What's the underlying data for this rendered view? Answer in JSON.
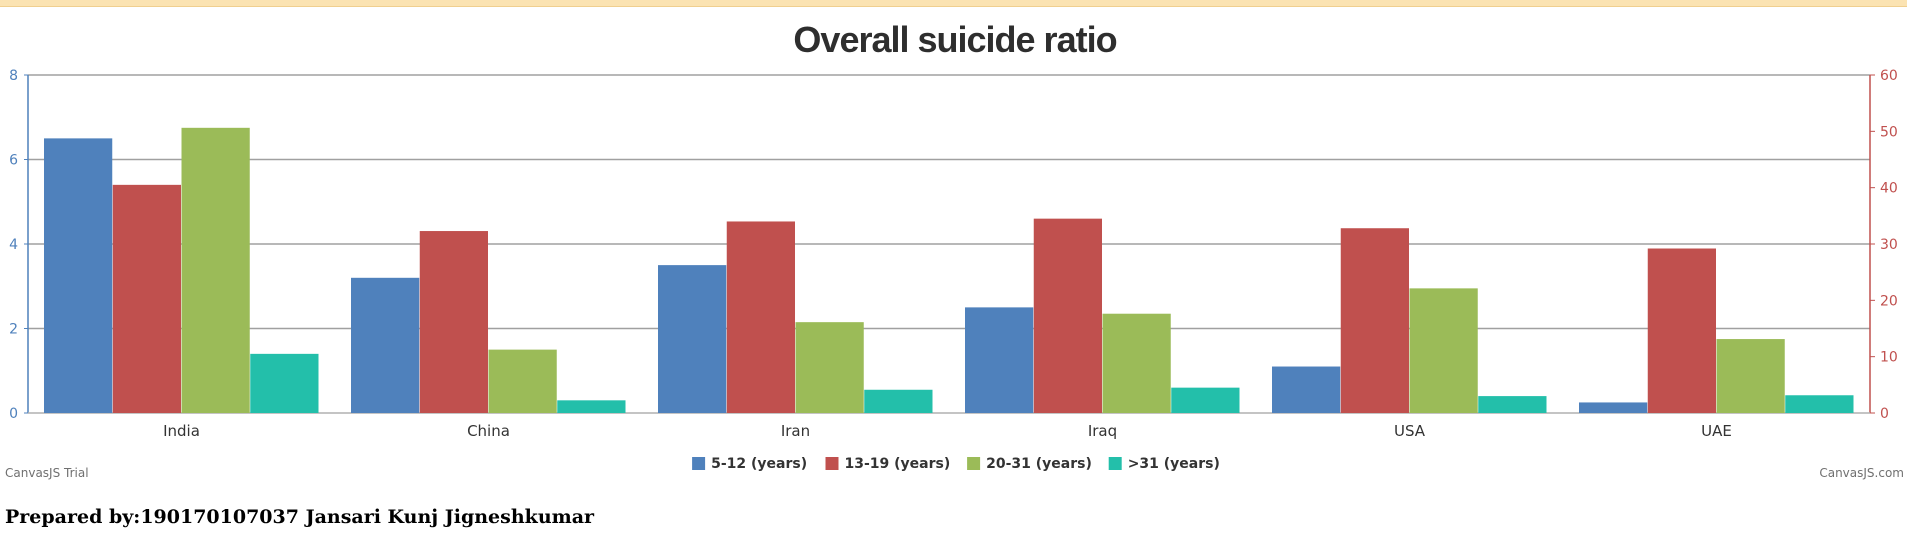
{
  "chart_data": {
    "type": "bar",
    "title": "Overall suicide ratio",
    "categories": [
      "India",
      "China",
      "Iran",
      "Iraq",
      "USA",
      "UAE"
    ],
    "series": [
      {
        "name": "5-12 (years)",
        "axis": "left",
        "color": "#4f81bc",
        "values": [
          6.5,
          3.2,
          3.5,
          2.5,
          1.1,
          0.25
        ]
      },
      {
        "name": "13-19 (years)",
        "axis": "right",
        "color": "#c0504e",
        "values": [
          40.5,
          32.3,
          34.0,
          34.5,
          32.8,
          29.2
        ]
      },
      {
        "name": "20-31 (years)",
        "axis": "left",
        "color": "#9bbb58",
        "values": [
          6.75,
          1.5,
          2.15,
          2.35,
          2.95,
          1.75
        ]
      },
      {
        "name": ">31 (years)",
        "axis": "left",
        "color": "#23bfaa",
        "values": [
          1.4,
          0.3,
          0.55,
          0.6,
          0.4,
          0.42
        ]
      }
    ],
    "y_left": {
      "min": 0,
      "max": 8,
      "ticks": [
        "0",
        "2",
        "4",
        "6",
        "8"
      ],
      "color": "#4f81bc"
    },
    "y_right": {
      "min": 0,
      "max": 60,
      "ticks": [
        "0",
        "10",
        "20",
        "30",
        "40",
        "50",
        "60"
      ],
      "color": "#c0504e"
    },
    "grid": true,
    "legend_position": "bottom"
  },
  "credits": {
    "left": "CanvasJS Trial",
    "right": "CanvasJS.com"
  },
  "footer": {
    "text": "Prepared by:190170107037 Jansari Kunj Jigneshkumar"
  }
}
